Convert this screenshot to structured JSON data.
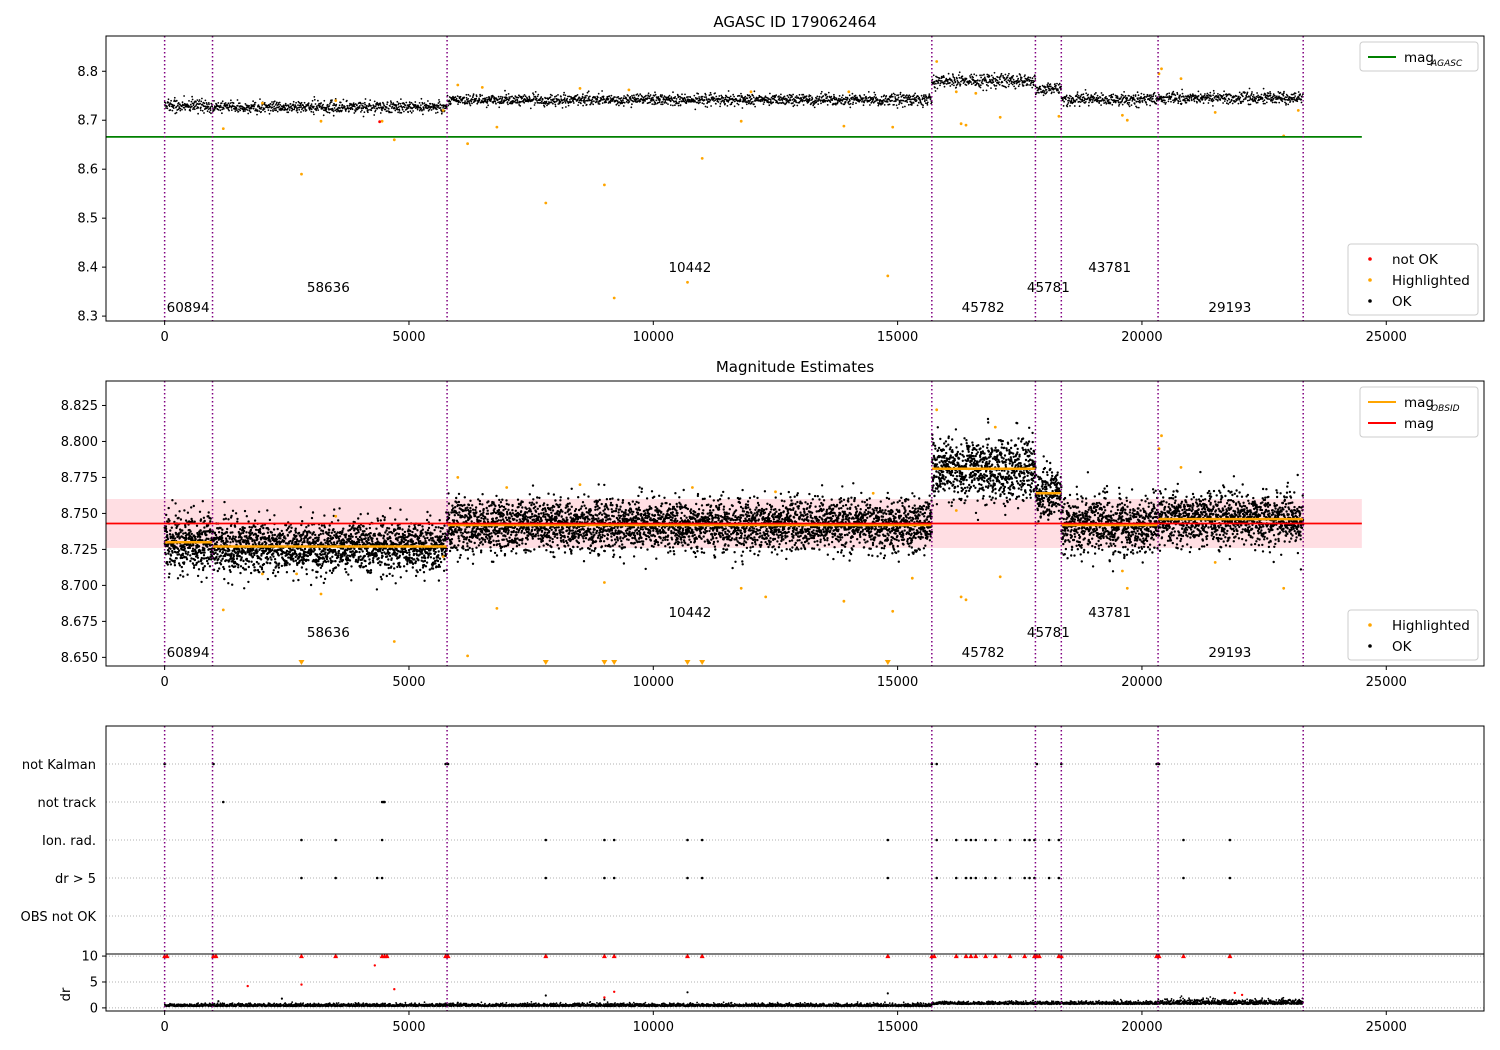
{
  "colors": {
    "ok": "#000000",
    "highlighted": "#ffa500",
    "not_ok": "#ff0000",
    "mag_agasc": "#008000",
    "mag": "#ff0000",
    "mag_obsid": "#ffa500",
    "band": "#ffb6c1",
    "obsid_line": "#800080",
    "grid": "#b0b0b0"
  },
  "chart_data": [
    {
      "type": "scatter",
      "title": "AGASC ID 179062464",
      "xlim": [
        -1200,
        27000
      ],
      "ylim": [
        8.29,
        8.872
      ],
      "x_ticks": [
        0,
        5000,
        10000,
        15000,
        20000,
        25000
      ],
      "y_ticks": [
        8.3,
        8.4,
        8.5,
        8.6,
        8.7,
        8.8
      ],
      "legend_upper": {
        "position": "upper-right",
        "entries": [
          {
            "label": "mag",
            "sub": "AGASC",
            "kind": "line",
            "color_key": "mag_agasc"
          }
        ]
      },
      "legend_lower": {
        "position": "lower-right",
        "entries": [
          {
            "label": "not OK",
            "kind": "dot",
            "color_key": "not_ok"
          },
          {
            "label": "Highlighted",
            "kind": "dot",
            "color_key": "highlighted"
          },
          {
            "label": "OK",
            "kind": "dot",
            "color_key": "ok"
          }
        ]
      },
      "mag_agasc": {
        "value": 8.666,
        "x_range": [
          -1200,
          24500
        ]
      },
      "highlighted_points": [
        [
          1200,
          8.683
        ],
        [
          2800,
          8.59
        ],
        [
          3200,
          8.698
        ],
        [
          4450,
          8.698
        ],
        [
          4700,
          8.66
        ],
        [
          5700,
          8.72
        ],
        [
          6200,
          8.652
        ],
        [
          6800,
          8.686
        ],
        [
          7800,
          8.531
        ],
        [
          9000,
          8.568
        ],
        [
          9200,
          8.337
        ],
        [
          10700,
          8.369
        ],
        [
          11000,
          8.622
        ],
        [
          11800,
          8.698
        ],
        [
          13900,
          8.688
        ],
        [
          14800,
          8.382
        ],
        [
          14900,
          8.686
        ],
        [
          16200,
          8.758
        ],
        [
          16300,
          8.693
        ],
        [
          16400,
          8.69
        ],
        [
          17100,
          8.706
        ],
        [
          18300,
          8.708
        ],
        [
          19600,
          8.71
        ],
        [
          19700,
          8.7
        ],
        [
          20350,
          8.795
        ],
        [
          20400,
          8.805
        ],
        [
          20800,
          8.785
        ],
        [
          21500,
          8.716
        ],
        [
          22900,
          8.668
        ],
        [
          23200,
          8.72
        ],
        [
          15800,
          8.82
        ],
        [
          16600,
          8.755
        ],
        [
          6000,
          8.772
        ],
        [
          6500,
          8.767
        ],
        [
          8500,
          8.765
        ],
        [
          9500,
          8.762
        ],
        [
          12000,
          8.758
        ],
        [
          14000,
          8.758
        ],
        [
          2000,
          8.735
        ],
        [
          3500,
          8.74
        ]
      ],
      "not_ok_points": [
        [
          4400,
          8.697
        ]
      ]
    },
    {
      "type": "scatter",
      "title": "Magnitude Estimates",
      "xlim": [
        -1200,
        27000
      ],
      "ylim": [
        8.644,
        8.842
      ],
      "x_ticks": [
        0,
        5000,
        10000,
        15000,
        20000,
        25000
      ],
      "y_ticks": [
        8.65,
        8.675,
        8.7,
        8.725,
        8.75,
        8.775,
        8.8,
        8.825
      ],
      "legend_upper": {
        "position": "upper-right",
        "entries": [
          {
            "label": "mag",
            "sub": "OBSID",
            "kind": "line",
            "color_key": "mag_obsid"
          },
          {
            "label": "mag",
            "kind": "line",
            "color_key": "mag"
          }
        ]
      },
      "legend_lower": {
        "position": "lower-right",
        "entries": [
          {
            "label": "Highlighted",
            "kind": "dot",
            "color_key": "highlighted"
          },
          {
            "label": "OK",
            "kind": "dot",
            "color_key": "ok"
          }
        ]
      },
      "mag": {
        "value": 8.743,
        "band": [
          8.726,
          8.76
        ],
        "x_range": [
          -1200,
          24500
        ]
      },
      "highlighted_points": [
        [
          1200,
          8.683
        ],
        [
          3200,
          8.694
        ],
        [
          4700,
          8.661
        ],
        [
          5700,
          8.72
        ],
        [
          6200,
          8.651
        ],
        [
          6800,
          8.684
        ],
        [
          9000,
          8.702
        ],
        [
          11800,
          8.698
        ],
        [
          12300,
          8.692
        ],
        [
          13900,
          8.689
        ],
        [
          14900,
          8.682
        ],
        [
          15300,
          8.705
        ],
        [
          16200,
          8.752
        ],
        [
          16300,
          8.692
        ],
        [
          16400,
          8.69
        ],
        [
          17100,
          8.706
        ],
        [
          19600,
          8.71
        ],
        [
          19700,
          8.698
        ],
        [
          20350,
          8.795
        ],
        [
          20400,
          8.804
        ],
        [
          20800,
          8.782
        ],
        [
          21500,
          8.716
        ],
        [
          22900,
          8.698
        ],
        [
          15800,
          8.822
        ],
        [
          17000,
          8.81
        ],
        [
          6000,
          8.775
        ],
        [
          7000,
          8.768
        ],
        [
          8500,
          8.77
        ],
        [
          10800,
          8.768
        ],
        [
          12500,
          8.765
        ],
        [
          14500,
          8.764
        ],
        [
          2000,
          8.708
        ],
        [
          2700,
          8.708
        ],
        [
          3500,
          8.748
        ]
      ],
      "below_markers_x": [
        2800,
        7800,
        9000,
        9200,
        10700,
        11000,
        14800
      ]
    },
    {
      "type": "scatter",
      "title": "",
      "xlim": [
        -1200,
        27000
      ],
      "categories": [
        "not Kalman",
        "not track",
        "Ion. rad.",
        "dr > 5",
        "OBS not OK"
      ],
      "flags": {
        "not Kalman": [
          0,
          1000,
          5750,
          5800,
          15700,
          15800,
          17850,
          18350,
          20300,
          20350
        ],
        "not track": [
          1200,
          4450,
          4480,
          4500
        ],
        "Ion. rad.": [
          2800,
          3500,
          4450,
          7800,
          9000,
          9200,
          10700,
          11000,
          14800,
          15800,
          16200,
          16400,
          16500,
          16600,
          16800,
          17000,
          17300,
          17600,
          17700,
          17800,
          18100,
          18300,
          20850,
          21800
        ],
        "dr > 5": [
          2800,
          3500,
          4350,
          4450,
          7800,
          9000,
          9200,
          10700,
          11000,
          14800,
          15800,
          16200,
          16400,
          16500,
          16600,
          16800,
          17000,
          17300,
          17600,
          17700,
          17800,
          18100,
          18300,
          20850,
          21800
        ],
        "OBS not OK": []
      },
      "x_ticks": [
        0,
        5000,
        10000,
        15000,
        20000,
        25000
      ]
    },
    {
      "type": "scatter",
      "title": "",
      "ylabel": "dr",
      "xlim": [
        -1200,
        27000
      ],
      "ylim": [
        -0.6,
        10.4
      ],
      "y_ticks": [
        0,
        5,
        10
      ],
      "x_ticks": [
        0,
        5000,
        10000,
        15000,
        20000,
        25000
      ],
      "not_ok_points": [
        [
          1700,
          4.2
        ],
        [
          2800,
          4.5
        ],
        [
          4300,
          8.2
        ],
        [
          4700,
          3.6
        ],
        [
          9200,
          3.1
        ],
        [
          9000,
          2.0
        ],
        [
          21900,
          2.9
        ],
        [
          22050,
          2.5
        ]
      ],
      "ok_outliers": [
        [
          2400,
          1.8
        ],
        [
          7800,
          2.4
        ],
        [
          9000,
          1.6
        ],
        [
          10700,
          3.0
        ],
        [
          14800,
          2.8
        ],
        [
          1100,
          1.3
        ],
        [
          6000,
          1.0
        ]
      ],
      "clipped_x": [
        0,
        50,
        1000,
        1050,
        2800,
        3500,
        4450,
        4500,
        4550,
        5750,
        5800,
        7800,
        9000,
        9200,
        10700,
        11000,
        14800,
        15700,
        15750,
        16200,
        16400,
        16500,
        16600,
        16800,
        17000,
        17300,
        17600,
        17800,
        17850,
        17900,
        18300,
        18350,
        20300,
        20350,
        20850,
        21800
      ]
    }
  ],
  "observations": [
    {
      "obsid": "60894",
      "start": 0,
      "end": 980
    },
    {
      "obsid": "58636",
      "start": 980,
      "end": 5780
    },
    {
      "obsid": "10442",
      "start": 5780,
      "end": 15700
    },
    {
      "obsid": "45782",
      "start": 15700,
      "end": 17820
    },
    {
      "obsid": "45781",
      "start": 17820,
      "end": 18350
    },
    {
      "obsid": "43781",
      "start": 18350,
      "end": 20330
    },
    {
      "obsid": "29193",
      "start": 20330,
      "end": 23300
    }
  ],
  "segments": [
    {
      "start": 0,
      "end": 980,
      "mean": 8.73,
      "spread": 0.013,
      "top": [
        8.725,
        8.745
      ]
    },
    {
      "start": 980,
      "end": 5780,
      "mean": 8.727,
      "spread": 0.011,
      "top": [
        8.715,
        8.745
      ]
    },
    {
      "start": 5780,
      "end": 15700,
      "mean": 8.742,
      "spread": 0.011,
      "top": [
        8.728,
        8.76
      ]
    },
    {
      "start": 15700,
      "end": 17820,
      "mean": 8.781,
      "spread": 0.013,
      "top": [
        8.768,
        8.8
      ]
    },
    {
      "start": 17820,
      "end": 18350,
      "mean": 8.764,
      "spread": 0.011,
      "top": [
        8.745,
        8.78
      ]
    },
    {
      "start": 18350,
      "end": 20330,
      "mean": 8.742,
      "spread": 0.012,
      "top": [
        8.725,
        8.76
      ]
    },
    {
      "start": 20330,
      "end": 23300,
      "mean": 8.746,
      "spread": 0.011,
      "top": [
        8.73,
        8.765
      ]
    }
  ],
  "obsid_label_layout": [
    {
      "obsid": "60894",
      "x": 480,
      "level": 0
    },
    {
      "obsid": "58636",
      "x": 3350,
      "level": 1
    },
    {
      "obsid": "10442",
      "x": 10750,
      "level": 2
    },
    {
      "obsid": "45782",
      "x": 16750,
      "level": 0
    },
    {
      "obsid": "45781",
      "x": 18085,
      "level": 1
    },
    {
      "obsid": "43781",
      "x": 19340,
      "level": 2
    },
    {
      "obsid": "29193",
      "x": 21800,
      "level": 0
    }
  ]
}
